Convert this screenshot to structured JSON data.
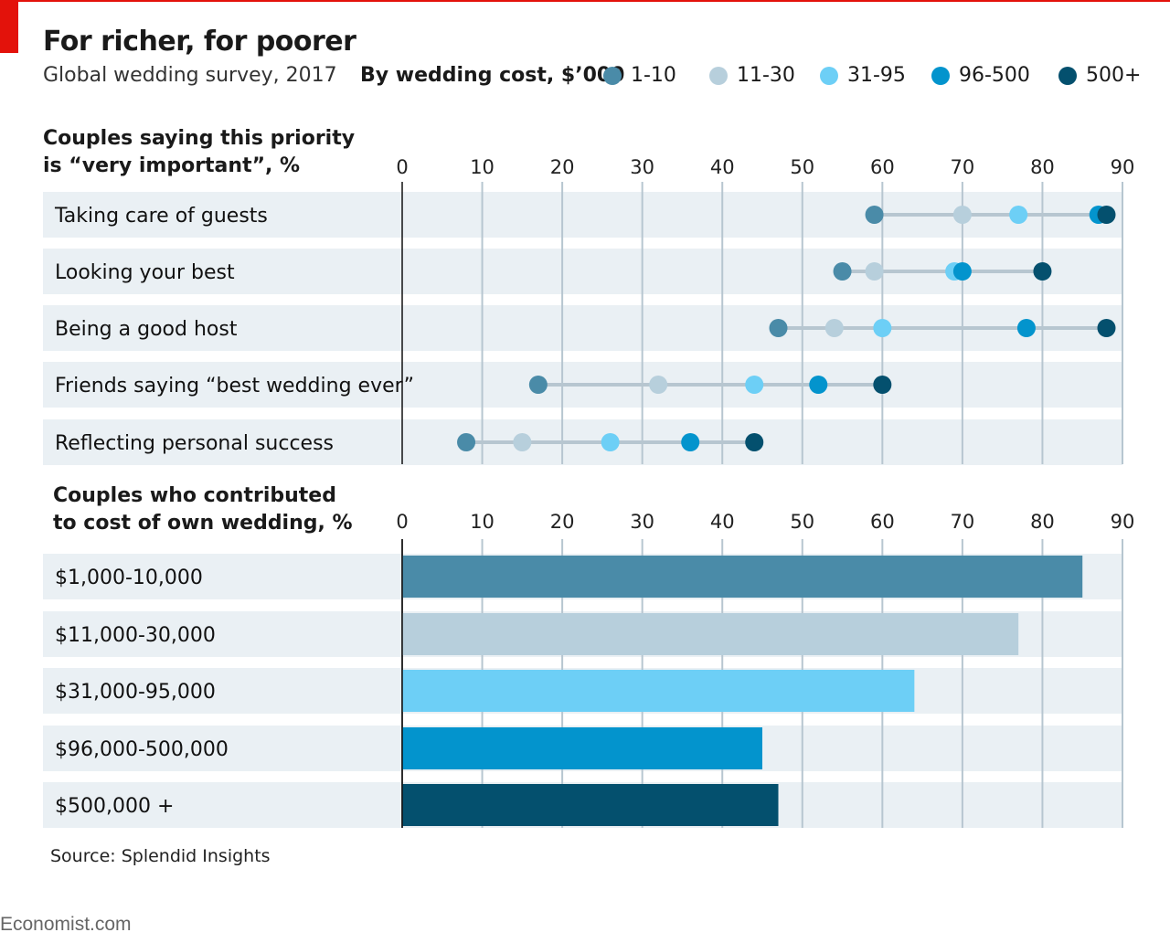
{
  "title": "For richer, for poorer",
  "subtitle": "Global wedding survey, 2017",
  "legend": {
    "title": "By wedding cost, $’000",
    "items": [
      {
        "label": "1-10",
        "color": "#4a8ba8"
      },
      {
        "label": "11-30",
        "color": "#b7cfdc"
      },
      {
        "label": "31-95",
        "color": "#6dcff6"
      },
      {
        "label": "96-500",
        "color": "#0394cd"
      },
      {
        "label": "500+",
        "color": "#04506e"
      }
    ]
  },
  "source": "Source: Splendid Insights",
  "footer": "Economist.com",
  "chart_data": [
    {
      "type": "scatter",
      "title": "Couples saying this priority is “very important”, %",
      "title_lines": [
        "Couples saying this priority",
        "is “very important”, %"
      ],
      "xlim": [
        0,
        90
      ],
      "x_ticks": [
        "0",
        "10",
        "20",
        "30",
        "40",
        "50",
        "60",
        "70",
        "80",
        "90"
      ],
      "categories": [
        "Taking care of guests",
        "Looking your best",
        "Being a good host",
        "Friends saying “best wedding ever”",
        "Reflecting personal success"
      ],
      "series": [
        {
          "name": "1-10",
          "color": "#4a8ba8",
          "values": [
            59,
            55,
            47,
            17,
            8
          ]
        },
        {
          "name": "11-30",
          "color": "#b7cfdc",
          "values": [
            70,
            59,
            54,
            32,
            15
          ]
        },
        {
          "name": "31-95",
          "color": "#6dcff6",
          "values": [
            77,
            69,
            60,
            44,
            26
          ]
        },
        {
          "name": "96-500",
          "color": "#0394cd",
          "values": [
            87,
            70,
            78,
            52,
            36
          ]
        },
        {
          "name": "500+",
          "color": "#04506e",
          "values": [
            88,
            80,
            88,
            60,
            44
          ]
        }
      ]
    },
    {
      "type": "bar",
      "title": "Couples who contributed to cost of own wedding, %",
      "title_lines": [
        "Couples who contributed",
        "to cost of own wedding, %"
      ],
      "xlim": [
        0,
        90
      ],
      "x_ticks": [
        "0",
        "10",
        "20",
        "30",
        "40",
        "50",
        "60",
        "70",
        "80",
        "90"
      ],
      "categories": [
        "$1,000-10,000",
        "$11,000-30,000",
        "$31,000-95,000",
        "$96,000-500,000",
        "$500,000 +"
      ],
      "values": [
        85,
        77,
        64,
        45,
        47
      ],
      "colors": [
        "#4a8ba8",
        "#b7cfdc",
        "#6dcff6",
        "#0394cd",
        "#04506e"
      ]
    }
  ]
}
